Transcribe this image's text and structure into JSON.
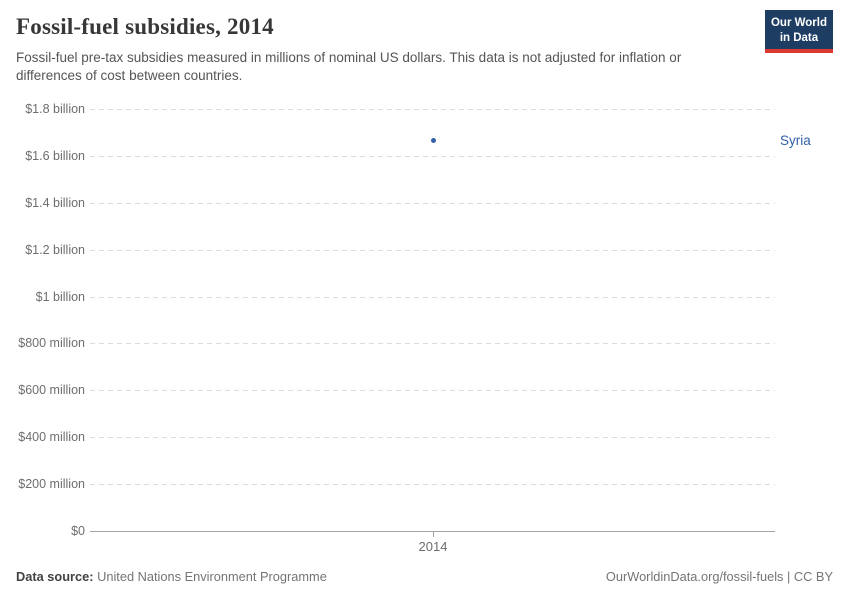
{
  "header": {
    "title": "Fossil-fuel subsidies, 2014",
    "subtitle": "Fossil-fuel pre-tax subsidies measured in millions of nominal US dollars. This data is not adjusted for inflation or differences of cost between countries.",
    "logo": {
      "line1": "Our World",
      "line2": "in Data",
      "bg_color": "#1d3d63",
      "stripe_color": "#dc3932"
    }
  },
  "chart_data": {
    "type": "scatter",
    "title": "Fossil-fuel subsidies, 2014",
    "x": [
      2014
    ],
    "series": [
      {
        "name": "Syria",
        "values": [
          1665
        ],
        "color": "#3360a9"
      }
    ],
    "ylabel": "",
    "xlabel": "",
    "ylim": [
      0,
      1800
    ],
    "grid": "horizontal-dashed",
    "legend_position": "right-of-point",
    "yticks": [
      {
        "value": 0,
        "label": "$0"
      },
      {
        "value": 200,
        "label": "$200 million"
      },
      {
        "value": 400,
        "label": "$400 million"
      },
      {
        "value": 600,
        "label": "$600 million"
      },
      {
        "value": 800,
        "label": "$800 million"
      },
      {
        "value": 1000,
        "label": "$1 billion"
      },
      {
        "value": 1200,
        "label": "$1.2 billion"
      },
      {
        "value": 1400,
        "label": "$1.4 billion"
      },
      {
        "value": 1600,
        "label": "$1.6 billion"
      },
      {
        "value": 1800,
        "label": "$1.8 billion"
      }
    ],
    "xticks": [
      {
        "value": 2014,
        "label": "2014"
      }
    ]
  },
  "footer": {
    "datasource_label": "Data source:",
    "datasource_value": "United Nations Environment Programme",
    "license": "OurWorldinData.org/fossil-fuels | CC BY"
  },
  "colors": {
    "gridline": "#dcdcdc",
    "axis_line": "#a3a3a3",
    "tick_label": "#6e6e6e",
    "title_text": "#373737",
    "subtitle_text": "#555555"
  }
}
